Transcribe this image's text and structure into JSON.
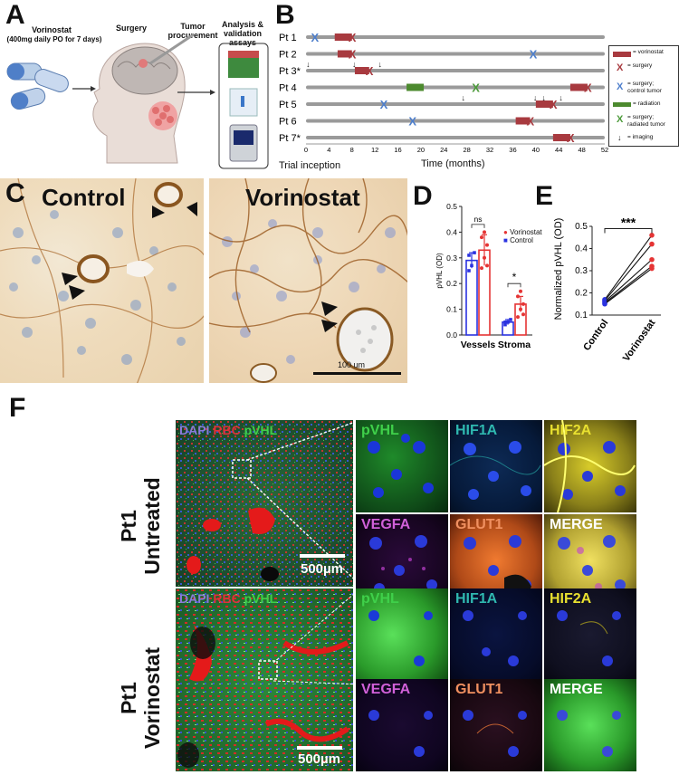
{
  "panels": {
    "A": "A",
    "B": "B",
    "C": "C",
    "D": "D",
    "E": "E",
    "F": "F"
  },
  "panel_a": {
    "drug_line1": "Vorinostat",
    "drug_line2": "(400mg daily PO for 7 days)",
    "surgery": "Surgery",
    "procurement_line1": "Tumor",
    "procurement_line2": "procurement",
    "analysis_line1": "Analysis &",
    "analysis_line2": "validation",
    "analysis_line3": "assays"
  },
  "chart_data": [
    {
      "type": "timeline",
      "xlabel": "Time (months)",
      "xlim": [
        0,
        52
      ],
      "xticks": [
        0,
        4,
        8,
        12,
        16,
        20,
        24,
        28,
        32,
        36,
        40,
        44,
        48,
        52
      ],
      "annotation": "Trial inception",
      "patients": [
        {
          "label": "Pt 1",
          "vorinostat": [
            [
              5,
              8
            ]
          ],
          "surgery": [
            8
          ],
          "control_surgery": [
            1.5
          ],
          "radiated_surgery": [],
          "radiation": [],
          "imaging": []
        },
        {
          "label": "Pt 2",
          "vorinostat": [
            [
              5.5,
              8
            ]
          ],
          "surgery": [
            8
          ],
          "control_surgery": [
            39.5
          ],
          "radiated_surgery": [],
          "radiation": [],
          "imaging": []
        },
        {
          "label": "Pt 3*",
          "vorinostat": [
            [
              8.5,
              11
            ]
          ],
          "surgery": [
            11
          ],
          "control_surgery": [],
          "radiated_surgery": [],
          "radiation": [],
          "imaging": [
            0.5,
            8.5,
            13
          ]
        },
        {
          "label": "Pt 4",
          "vorinostat": [
            [
              46,
              49
            ]
          ],
          "surgery": [
            49
          ],
          "control_surgery": [],
          "radiated_surgery": [
            29.5
          ],
          "radiation": [
            [
              17.5,
              20.5
            ]
          ],
          "imaging": []
        },
        {
          "label": "Pt 5",
          "vorinostat": [
            [
              40,
              43
            ]
          ],
          "surgery": [
            43
          ],
          "control_surgery": [
            13.5
          ],
          "radiated_surgery": [],
          "radiation": [],
          "imaging": [
            27.5,
            40,
            41.5,
            44.5
          ]
        },
        {
          "label": "Pt 6",
          "vorinostat": [
            [
              36.5,
              39
            ]
          ],
          "surgery": [
            39
          ],
          "control_surgery": [
            18.5
          ],
          "radiated_surgery": [],
          "radiation": [],
          "imaging": []
        },
        {
          "label": "Pt 7*",
          "vorinostat": [
            [
              43,
              46
            ]
          ],
          "surgery": [
            46
          ],
          "control_surgery": [],
          "radiated_surgery": [],
          "radiation": [],
          "imaging": []
        }
      ],
      "legend": {
        "vorinostat": "= vorinostat",
        "surgery": "= surgery",
        "control_line1": "= surgery;",
        "control_line2": "control tumor",
        "radiation": "= radiation",
        "radiated_line1": "= surgery;",
        "radiated_line2": "radiated tumor",
        "imaging": "= imaging"
      }
    },
    {
      "type": "bar",
      "ylabel": "pVHL (OD)",
      "ylim": [
        0,
        0.5
      ],
      "yticks": [
        0.0,
        0.1,
        0.2,
        0.3,
        0.4,
        0.5
      ],
      "categories": [
        "Vessels",
        "Stroma"
      ],
      "series": [
        {
          "name": "Control",
          "values": [
            0.29,
            0.05
          ],
          "err": [
            0.03,
            0.01
          ],
          "points": [
            [
              0.25,
              0.27,
              0.32,
              0.31
            ],
            [
              0.04,
              0.05,
              0.06,
              0.05
            ]
          ]
        },
        {
          "name": "Vorinostat",
          "values": [
            0.33,
            0.12
          ],
          "err": [
            0.06,
            0.03
          ],
          "points": [
            [
              0.26,
              0.3,
              0.35,
              0.38,
              0.4,
              0.27
            ],
            [
              0.07,
              0.1,
              0.12,
              0.15,
              0.17,
              0.08
            ]
          ]
        }
      ],
      "significance": [
        "ns",
        "*"
      ]
    },
    {
      "type": "line",
      "ylabel": "Normalized pVHL (OD)",
      "ylim": [
        0.1,
        0.5
      ],
      "yticks": [
        0.1,
        0.2,
        0.3,
        0.4,
        0.5
      ],
      "categories": [
        "Control",
        "Vorinostat"
      ],
      "pairs": [
        [
          0.17,
          0.46
        ],
        [
          0.165,
          0.42
        ],
        [
          0.16,
          0.35
        ],
        [
          0.155,
          0.32
        ],
        [
          0.15,
          0.31
        ]
      ],
      "significance": "***"
    }
  ],
  "panel_c": {
    "left_title": "Control",
    "right_title": "Vorinostat",
    "scale_label": "100 um"
  },
  "panel_f": {
    "overview_labels": [
      "DAPI",
      "RBC",
      "pVHL"
    ],
    "row1_label_top": "Pt1",
    "row1_label_bottom": "Untreated",
    "row2_label_top": "Pt1",
    "row2_label_bottom": "Vorinostat",
    "scale_label": "500µm",
    "row1_tiles": [
      "pVHL",
      "HIF1A",
      "HIF2A",
      "VEGFA",
      "GLUT1",
      "MERGE"
    ],
    "row2_tiles": [
      "pVHL",
      "HIF1A",
      "HIF2A",
      "VEGFA",
      "GLUT1",
      "MERGE"
    ],
    "colors": {
      "dapi": "#8a7bd8",
      "rbc": "#e0303a",
      "pvhl": "#3fd04a",
      "hif1a": "#2fb8b0",
      "hif2a": "#e8e030",
      "vegfa": "#d060d8",
      "glut1": "#f09060",
      "merge": "#ffffff"
    }
  }
}
